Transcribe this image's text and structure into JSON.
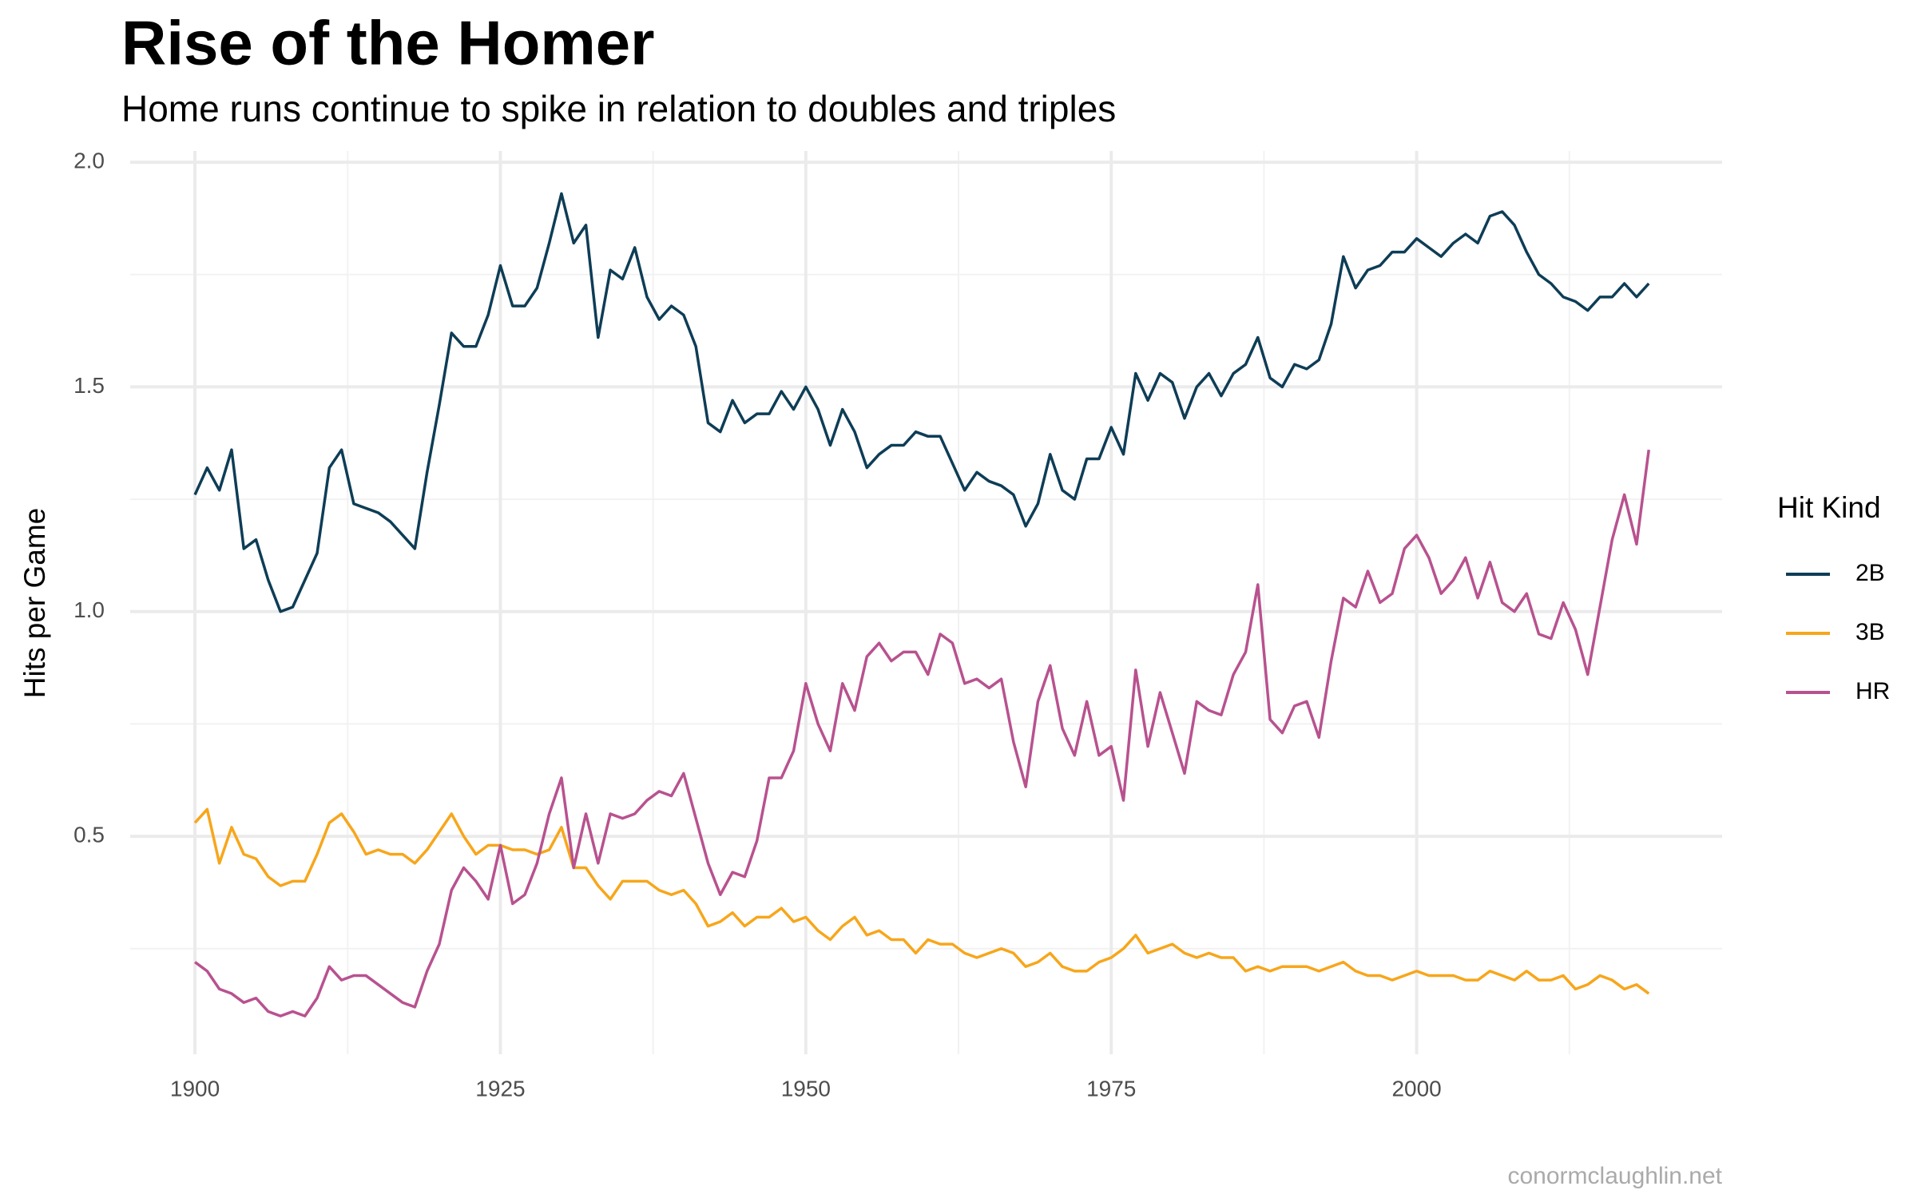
{
  "chart_data": {
    "type": "line",
    "title": "Rise of the Homer",
    "subtitle": "Home runs continue to spike in relation to doubles and triples",
    "y_label": "Hits per Game",
    "legend_title": "Hit Kind",
    "caption": "conormclaughlin.net",
    "legend": "right",
    "grid": true,
    "xlim": [
      1894.7,
      2025
    ],
    "xticks": [
      1900,
      1925,
      1950,
      1975,
      2000
    ],
    "ylim": [
      0.015,
      2.025
    ],
    "yticks": [
      {
        "value": 0.5,
        "label": "0.5"
      },
      {
        "value": 1,
        "label": "1.0"
      },
      {
        "value": 1.5,
        "label": "1.5"
      },
      {
        "value": 2,
        "label": "2.0"
      }
    ],
    "x": [
      1900,
      1901,
      1902,
      1903,
      1904,
      1905,
      1906,
      1907,
      1908,
      1909,
      1910,
      1911,
      1912,
      1913,
      1914,
      1915,
      1916,
      1917,
      1918,
      1919,
      1920,
      1921,
      1922,
      1923,
      1924,
      1925,
      1926,
      1927,
      1928,
      1929,
      1930,
      1931,
      1932,
      1933,
      1934,
      1935,
      1936,
      1937,
      1938,
      1939,
      1940,
      1941,
      1942,
      1943,
      1944,
      1945,
      1946,
      1947,
      1948,
      1949,
      1950,
      1951,
      1952,
      1953,
      1954,
      1955,
      1956,
      1957,
      1958,
      1959,
      1960,
      1961,
      1962,
      1963,
      1964,
      1965,
      1966,
      1967,
      1968,
      1969,
      1970,
      1971,
      1972,
      1973,
      1974,
      1975,
      1976,
      1977,
      1978,
      1979,
      1980,
      1981,
      1982,
      1983,
      1984,
      1985,
      1986,
      1987,
      1988,
      1989,
      1990,
      1991,
      1992,
      1993,
      1994,
      1995,
      1996,
      1997,
      1998,
      1999,
      2000,
      2001,
      2002,
      2003,
      2004,
      2005,
      2006,
      2007,
      2008,
      2009,
      2010,
      2011,
      2012,
      2013,
      2014,
      2015,
      2016,
      2017,
      2018,
      2019
    ],
    "series": [
      {
        "name": "2B",
        "color": "#0e3d56",
        "values": [
          1.26,
          1.32,
          1.27,
          1.36,
          1.14,
          1.16,
          1.07,
          1.0,
          1.01,
          1.07,
          1.13,
          1.32,
          1.36,
          1.24,
          1.23,
          1.22,
          1.2,
          1.17,
          1.14,
          1.31,
          1.46,
          1.62,
          1.59,
          1.59,
          1.66,
          1.77,
          1.68,
          1.68,
          1.72,
          1.82,
          1.93,
          1.82,
          1.86,
          1.61,
          1.76,
          1.74,
          1.81,
          1.7,
          1.65,
          1.68,
          1.66,
          1.59,
          1.42,
          1.4,
          1.47,
          1.42,
          1.44,
          1.44,
          1.49,
          1.45,
          1.5,
          1.45,
          1.37,
          1.45,
          1.4,
          1.32,
          1.35,
          1.37,
          1.37,
          1.4,
          1.39,
          1.39,
          1.33,
          1.27,
          1.31,
          1.29,
          1.28,
          1.26,
          1.19,
          1.24,
          1.35,
          1.27,
          1.25,
          1.34,
          1.34,
          1.41,
          1.35,
          1.53,
          1.47,
          1.53,
          1.51,
          1.43,
          1.5,
          1.53,
          1.48,
          1.53,
          1.55,
          1.61,
          1.52,
          1.5,
          1.55,
          1.54,
          1.56,
          1.64,
          1.79,
          1.72,
          1.76,
          1.77,
          1.8,
          1.8,
          1.83,
          1.81,
          1.79,
          1.82,
          1.84,
          1.82,
          1.88,
          1.89,
          1.86,
          1.8,
          1.75,
          1.73,
          1.7,
          1.69,
          1.67,
          1.7,
          1.7,
          1.73,
          1.7,
          1.73
        ]
      },
      {
        "name": "3B",
        "color": "#f7a61b",
        "values": [
          0.53,
          0.56,
          0.44,
          0.52,
          0.46,
          0.45,
          0.41,
          0.39,
          0.4,
          0.4,
          0.46,
          0.53,
          0.55,
          0.51,
          0.46,
          0.47,
          0.46,
          0.46,
          0.44,
          0.47,
          0.51,
          0.55,
          0.5,
          0.46,
          0.48,
          0.48,
          0.47,
          0.47,
          0.46,
          0.47,
          0.52,
          0.43,
          0.43,
          0.39,
          0.36,
          0.4,
          0.4,
          0.4,
          0.38,
          0.37,
          0.38,
          0.35,
          0.3,
          0.31,
          0.33,
          0.3,
          0.32,
          0.32,
          0.34,
          0.31,
          0.32,
          0.29,
          0.27,
          0.3,
          0.32,
          0.28,
          0.29,
          0.27,
          0.27,
          0.24,
          0.27,
          0.26,
          0.26,
          0.24,
          0.23,
          0.24,
          0.25,
          0.24,
          0.21,
          0.22,
          0.24,
          0.21,
          0.2,
          0.2,
          0.22,
          0.23,
          0.25,
          0.28,
          0.24,
          0.25,
          0.26,
          0.24,
          0.23,
          0.24,
          0.23,
          0.23,
          0.2,
          0.21,
          0.2,
          0.21,
          0.21,
          0.21,
          0.2,
          0.21,
          0.22,
          0.2,
          0.19,
          0.19,
          0.18,
          0.19,
          0.2,
          0.19,
          0.19,
          0.19,
          0.18,
          0.18,
          0.2,
          0.19,
          0.18,
          0.2,
          0.18,
          0.18,
          0.19,
          0.16,
          0.17,
          0.19,
          0.18,
          0.16,
          0.17,
          0.15
        ]
      },
      {
        "name": "HR",
        "color": "#b8528f",
        "values": [
          0.22,
          0.2,
          0.16,
          0.15,
          0.13,
          0.14,
          0.11,
          0.1,
          0.11,
          0.1,
          0.14,
          0.21,
          0.18,
          0.19,
          0.19,
          0.17,
          0.15,
          0.13,
          0.12,
          0.2,
          0.26,
          0.38,
          0.43,
          0.4,
          0.36,
          0.48,
          0.35,
          0.37,
          0.44,
          0.55,
          0.63,
          0.43,
          0.55,
          0.44,
          0.55,
          0.54,
          0.55,
          0.58,
          0.6,
          0.59,
          0.64,
          0.54,
          0.44,
          0.37,
          0.42,
          0.41,
          0.49,
          0.63,
          0.63,
          0.69,
          0.84,
          0.75,
          0.69,
          0.84,
          0.78,
          0.9,
          0.93,
          0.89,
          0.91,
          0.91,
          0.86,
          0.95,
          0.93,
          0.84,
          0.85,
          0.83,
          0.85,
          0.71,
          0.61,
          0.8,
          0.88,
          0.74,
          0.68,
          0.8,
          0.68,
          0.7,
          0.58,
          0.87,
          0.7,
          0.82,
          0.73,
          0.64,
          0.8,
          0.78,
          0.77,
          0.86,
          0.91,
          1.06,
          0.76,
          0.73,
          0.79,
          0.8,
          0.72,
          0.89,
          1.03,
          1.01,
          1.09,
          1.02,
          1.04,
          1.14,
          1.17,
          1.12,
          1.04,
          1.07,
          1.12,
          1.03,
          1.11,
          1.02,
          1.0,
          1.04,
          0.95,
          0.94,
          1.02,
          0.96,
          0.86,
          1.01,
          1.16,
          1.26,
          1.15,
          1.36
        ]
      }
    ]
  }
}
